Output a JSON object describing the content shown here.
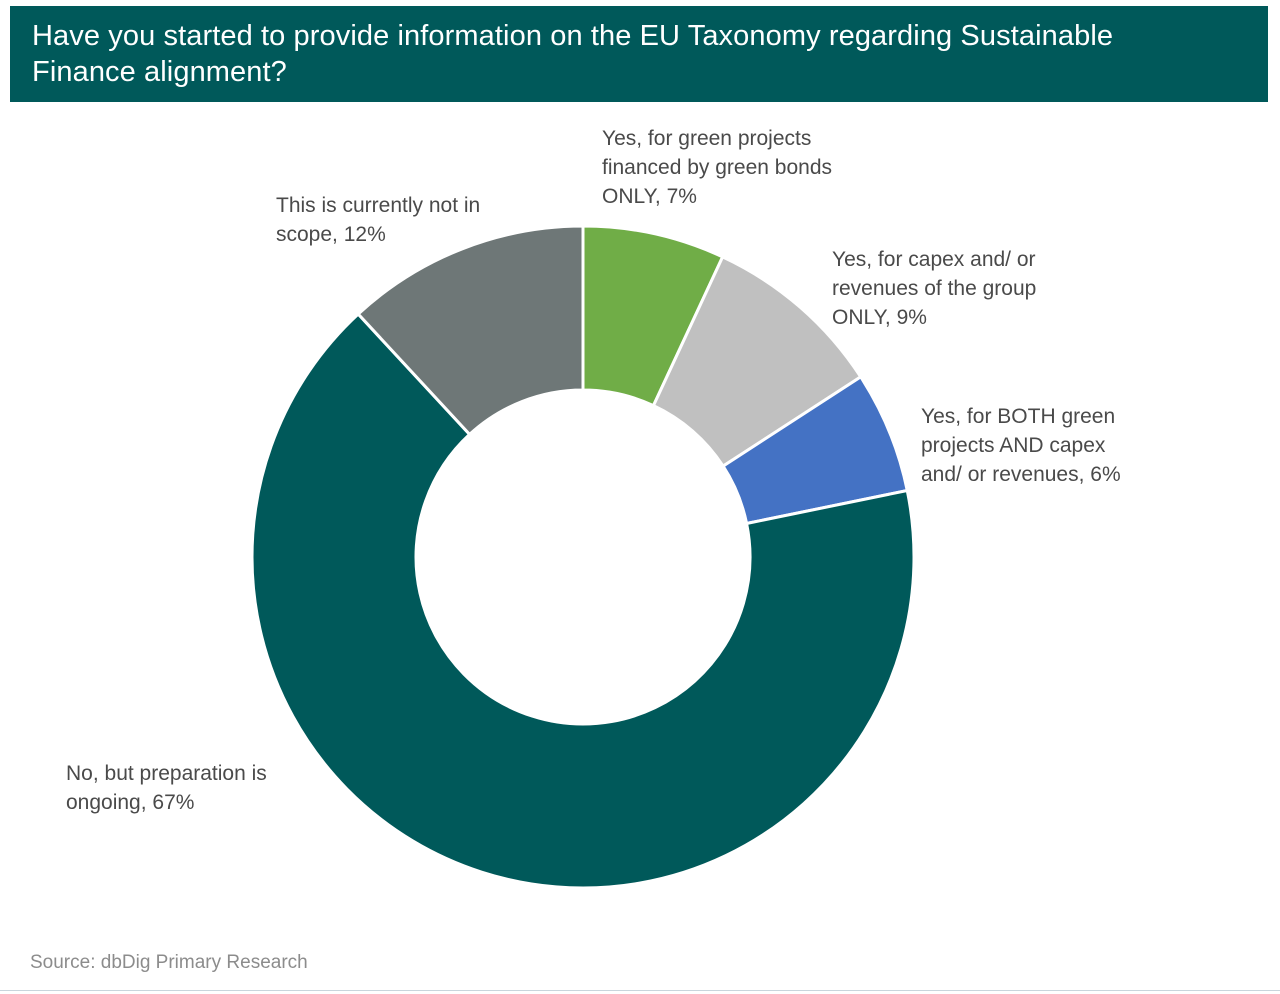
{
  "header": {
    "title_line1": "Have you started to provide information on the EU Taxonomy regarding Sustainable",
    "title_line2": "Finance alignment?"
  },
  "chart_data": {
    "type": "pie",
    "variant": "donut",
    "title": "Have you started to provide information on the EU Taxonomy regarding Sustainable Finance alignment?",
    "categories": [
      "Yes, for green projects financed by green bonds ONLY",
      "Yes, for capex and/ or revenues of the group ONLY",
      "Yes, for BOTH green projects AND capex and/ or revenues",
      "No, but preparation is ongoing",
      "This is currently not in scope"
    ],
    "values": [
      7,
      9,
      6,
      67,
      12
    ],
    "unit": "%",
    "colors": [
      "#70ad47",
      "#c0c0c0",
      "#4472c4",
      "#00595a",
      "#6e7777"
    ]
  },
  "labels": {
    "green_bonds": {
      "line1": "Yes, for green projects",
      "line2": "financed by green bonds",
      "line3": "ONLY, 7%"
    },
    "capex_group": {
      "line1": "Yes, for capex and/ or",
      "line2": "revenues of the group",
      "line3": "ONLY, 9%"
    },
    "both": {
      "line1": "Yes, for BOTH green",
      "line2": "projects AND capex",
      "line3": "and/ or revenues, 6%"
    },
    "preparation": {
      "line1": "No, but preparation is",
      "line2": "ongoing, 67%"
    },
    "not_in_scope": {
      "line1": "This is currently not in",
      "line2": "scope, 12%"
    }
  },
  "footer": {
    "source": "Source: dbDig Primary Research"
  }
}
